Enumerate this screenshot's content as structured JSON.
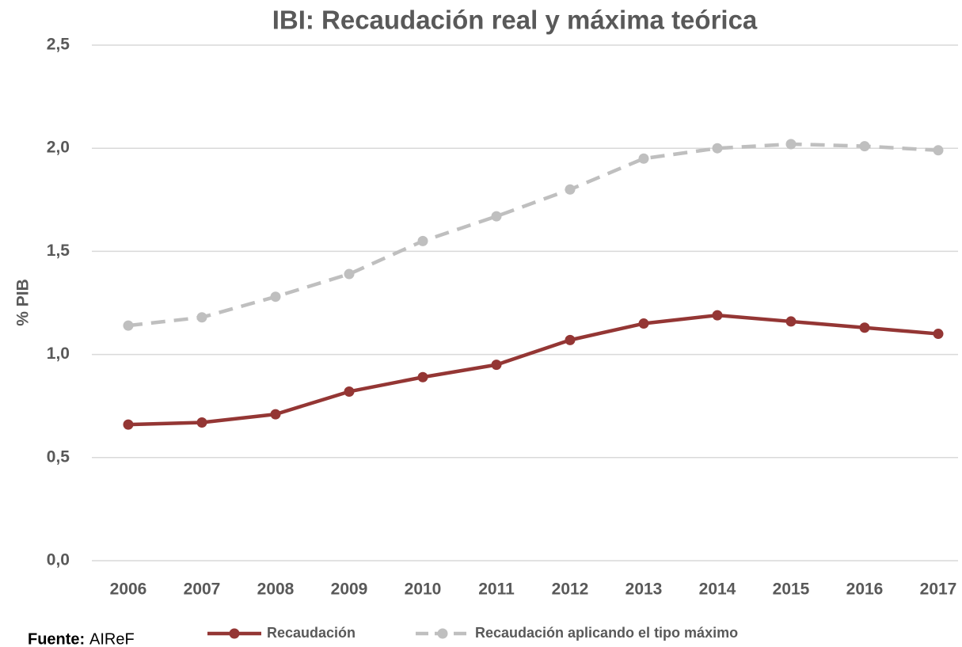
{
  "chart_data": {
    "type": "line",
    "title": "IBI: Recaudación real y máxima teórica",
    "y_label": "% PIB",
    "categories": [
      "2006",
      "2007",
      "2008",
      "2009",
      "2010",
      "2011",
      "2012",
      "2013",
      "2014",
      "2015",
      "2016",
      "2017"
    ],
    "series": [
      {
        "name": "Recaudación",
        "color": "#943634",
        "dash": false,
        "values": [
          0.66,
          0.67,
          0.71,
          0.82,
          0.89,
          0.95,
          1.07,
          1.15,
          1.19,
          1.16,
          1.13,
          1.1
        ]
      },
      {
        "name": "Recaudación aplicando el tipo máximo",
        "color": "#bfbfbf",
        "dash": true,
        "values": [
          1.14,
          1.18,
          1.28,
          1.39,
          1.55,
          1.67,
          1.8,
          1.95,
          2.0,
          2.02,
          2.01,
          1.99
        ]
      }
    ],
    "ylim": [
      0,
      2.5
    ],
    "yticks": [
      {
        "value": 0,
        "label": "0,0"
      },
      {
        "value": 0.5,
        "label": "0,5"
      },
      {
        "value": 1,
        "label": "1,0"
      },
      {
        "value": 1.5,
        "label": "1,5"
      },
      {
        "value": 2,
        "label": "2,0"
      },
      {
        "value": 2.5,
        "label": "2,5"
      }
    ],
    "grid": true,
    "legend": "bottom",
    "source_label": "Fuente:",
    "source": "AIReF"
  }
}
